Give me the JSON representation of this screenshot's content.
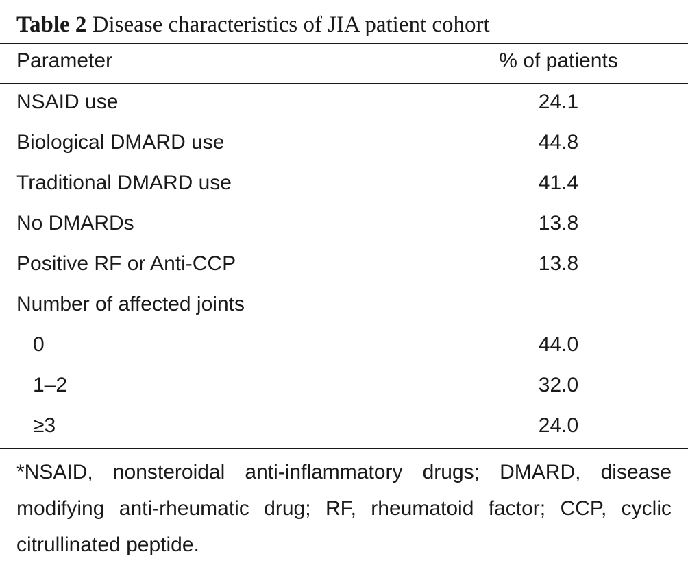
{
  "caption": {
    "label": "Table 2",
    "title": "Disease characteristics of JIA patient cohort"
  },
  "table": {
    "columns": [
      "Parameter",
      "% of patients"
    ],
    "rows": [
      {
        "parameter": "NSAID use",
        "value": "24.1"
      },
      {
        "parameter": "Biological DMARD use",
        "value": "44.8"
      },
      {
        "parameter": "Traditional DMARD use",
        "value": "41.4"
      },
      {
        "parameter": "No DMARDs",
        "value": "13.8"
      },
      {
        "parameter": "Positive RF or Anti-CCP",
        "value": "13.8"
      },
      {
        "parameter": "Number of affected joints",
        "value": ""
      },
      {
        "parameter": "0",
        "value": "44.0"
      },
      {
        "parameter": "1–2",
        "value": "32.0"
      },
      {
        "parameter": "≥3",
        "value": "24.0"
      }
    ]
  },
  "footnote": "*NSAID, nonsteroidal anti-inflammatory drugs; DMARD, disease modifying anti-rheumatic drug; RF, rheumatoid factor; CCP, cyclic citrullinated peptide."
}
